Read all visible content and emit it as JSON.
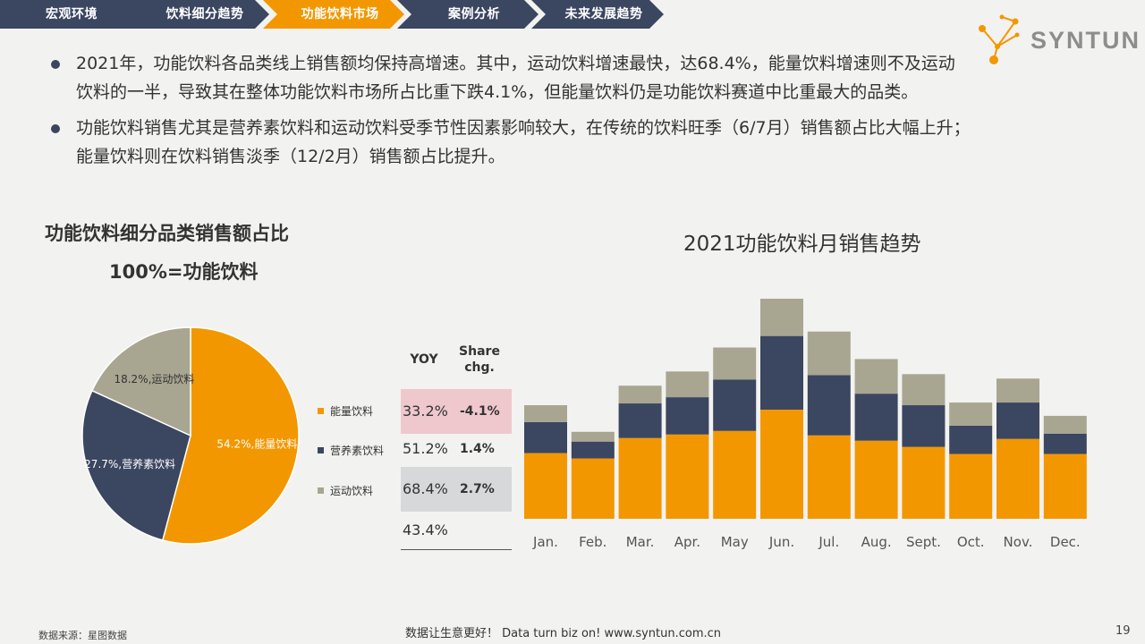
{
  "nav": {
    "tabs": [
      {
        "label": "宏观环境",
        "active": false
      },
      {
        "label": "饮料细分趋势",
        "active": false
      },
      {
        "label": "功能饮料市场",
        "active": true
      },
      {
        "label": "案例分析",
        "active": false
      },
      {
        "label": "未来发展趋势",
        "active": false
      }
    ],
    "colors": {
      "default": "#3b4660",
      "active": "#f39700"
    }
  },
  "logo": {
    "text": "SYNTUN"
  },
  "bullets": [
    "2021年，功能饮料各品类线上销售额均保持高增速。其中，运动饮料增速最快，达68.4%，能量饮料增速则不及运动饮料的一半，导致其在整体功能饮料市场所占比重下跌4.1%，但能量饮料仍是功能饮料赛道中比重最大的品类。",
    "功能饮料销售尤其是营养素饮料和运动饮料受季节性因素影响较大，在传统的饮料旺季（6/7月）销售额占比大幅上升；能量饮料则在饮料销售淡季（12/2月）销售额占比提升。"
  ],
  "pie": {
    "title": "功能饮料细分品类销售额占比",
    "subtitle": "100%=功能饮料"
  },
  "table": {
    "headers": {
      "yoy": "YOY",
      "share": "Share chg."
    },
    "rows": [
      {
        "yoy": "33.2%",
        "share": "-4.1%",
        "bg": "#eec8cd"
      },
      {
        "yoy": "51.2%",
        "share": "1.4%",
        "bg": ""
      },
      {
        "yoy": "68.4%",
        "share": "2.7%",
        "bg": "#d7d8da"
      },
      {
        "yoy": "43.4%",
        "share": "",
        "bg": ""
      }
    ]
  },
  "bar": {
    "title": "2021功能饮料月销售趋势"
  },
  "chart_data": [
    {
      "type": "pie",
      "title": "功能饮料细分品类销售额占比",
      "subtitle": "100%=功能饮料",
      "slices": [
        {
          "name": "能量饮料",
          "value": 54.2,
          "label": "54.2%,能量饮料",
          "color": "#f39700"
        },
        {
          "name": "营养素饮料",
          "value": 27.7,
          "label": "27.7%,营养素饮料",
          "color": "#3b4660"
        },
        {
          "name": "运动饮料",
          "value": 18.2,
          "label": "18.2%,运动饮料",
          "color": "#a8a591"
        }
      ],
      "legend": [
        "能量饮料",
        "营养素饮料",
        "运动饮料"
      ],
      "legend_position": "right"
    },
    {
      "type": "bar",
      "stacked": true,
      "title": "2021功能饮料月销售趋势",
      "categories": [
        "Jan.",
        "Feb.",
        "Mar.",
        "Apr.",
        "May",
        "Jun.",
        "Jul.",
        "Aug.",
        "Sept.",
        "Oct.",
        "Nov.",
        "Dec."
      ],
      "series": [
        {
          "name": "能量饮料",
          "color": "#f39700",
          "values": [
            74,
            68,
            91,
            95,
            99,
            123,
            94,
            88,
            81,
            73,
            90,
            73
          ]
        },
        {
          "name": "营养素饮料",
          "color": "#3b4660",
          "values": [
            35,
            19,
            39,
            42,
            58,
            83,
            68,
            53,
            47,
            32,
            41,
            23
          ]
        },
        {
          "name": "运动饮料",
          "color": "#a8a591",
          "values": [
            19,
            11,
            20,
            29,
            36,
            42,
            49,
            39,
            35,
            26,
            27,
            20
          ]
        }
      ],
      "ylim": [
        0,
        250
      ],
      "grid": false
    }
  ]
}
